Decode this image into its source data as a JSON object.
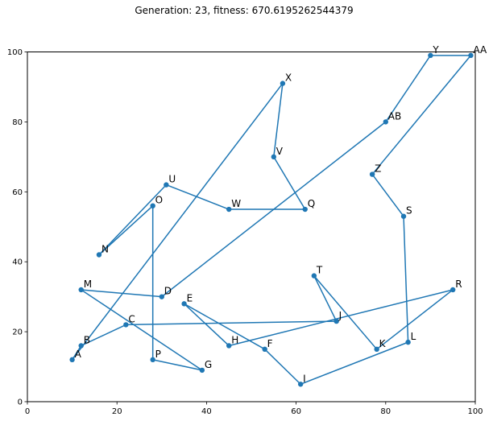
{
  "chart_data": {
    "type": "line",
    "title": "Generation: 23, fitness: 670.6195262544379",
    "xlabel": "",
    "ylabel": "",
    "xlim": [
      0,
      100
    ],
    "ylim": [
      0,
      100
    ],
    "xticks": [
      "0",
      "20",
      "40",
      "60",
      "80",
      "100"
    ],
    "yticks": [
      "0",
      "20",
      "40",
      "60",
      "80",
      "100"
    ],
    "grid": false,
    "line_color": "#1f77b4",
    "marker_color": "#1f77b4",
    "points": [
      {
        "label": "A",
        "x": 10,
        "y": 12
      },
      {
        "label": "B",
        "x": 12,
        "y": 16
      },
      {
        "label": "C",
        "x": 22,
        "y": 22
      },
      {
        "label": "J",
        "x": 69,
        "y": 23
      },
      {
        "label": "T",
        "x": 64,
        "y": 36
      },
      {
        "label": "K",
        "x": 78,
        "y": 15
      },
      {
        "label": "R",
        "x": 95,
        "y": 32
      },
      {
        "label": "H",
        "x": 45,
        "y": 16
      },
      {
        "label": "E",
        "x": 35,
        "y": 28
      },
      {
        "label": "F",
        "x": 53,
        "y": 15
      },
      {
        "label": "I",
        "x": 61,
        "y": 5
      },
      {
        "label": "L",
        "x": 85,
        "y": 17
      },
      {
        "label": "S",
        "x": 84,
        "y": 53
      },
      {
        "label": "Z",
        "x": 77,
        "y": 65
      },
      {
        "label": "AA",
        "x": 99,
        "y": 99
      },
      {
        "label": "Y",
        "x": 90,
        "y": 99
      },
      {
        "label": "AB",
        "x": 80,
        "y": 80
      },
      {
        "label": "D",
        "x": 30,
        "y": 30
      },
      {
        "label": "M",
        "x": 12,
        "y": 32
      },
      {
        "label": "G",
        "x": 39,
        "y": 9
      },
      {
        "label": "P",
        "x": 28,
        "y": 12
      },
      {
        "label": "O",
        "x": 28,
        "y": 56
      },
      {
        "label": "N",
        "x": 16,
        "y": 42
      },
      {
        "label": "U",
        "x": 31,
        "y": 62
      },
      {
        "label": "W",
        "x": 45,
        "y": 55
      },
      {
        "label": "Q",
        "x": 62,
        "y": 55
      },
      {
        "label": "V",
        "x": 55,
        "y": 70
      },
      {
        "label": "X",
        "x": 57,
        "y": 91
      }
    ]
  }
}
